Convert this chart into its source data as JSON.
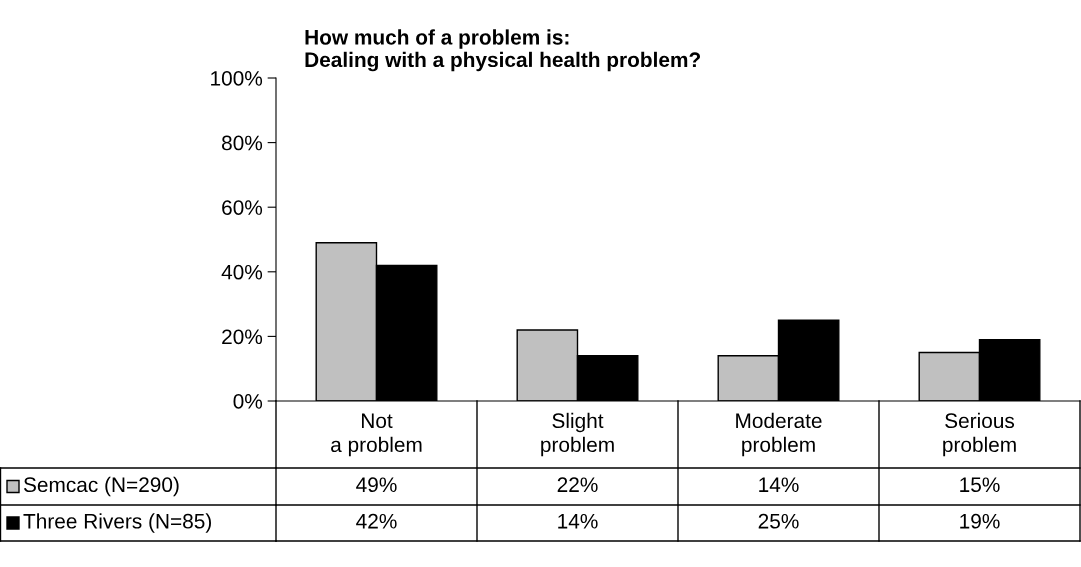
{
  "chart_data": {
    "type": "bar",
    "title": "How much of a problem is:\nDealing with a physical health problem?",
    "categories": [
      "Not\na problem",
      "Slight\nproblem",
      "Moderate\nproblem",
      "Serious\nproblem"
    ],
    "series": [
      {
        "name": "Semcac (N=290)",
        "color": "#c0c0c0",
        "values": [
          49,
          22,
          14,
          15
        ],
        "value_labels": [
          "49%",
          "22%",
          "14%",
          "15%"
        ]
      },
      {
        "name": "Three Rivers (N=85)",
        "color": "#000000",
        "values": [
          42,
          14,
          25,
          19
        ],
        "value_labels": [
          "42%",
          "14%",
          "25%",
          "19%"
        ]
      }
    ],
    "ylim": [
      0,
      100
    ],
    "yticks": [
      {
        "value": 0,
        "label": "0%"
      },
      {
        "value": 20,
        "label": "20%"
      },
      {
        "value": 40,
        "label": "40%"
      },
      {
        "value": 60,
        "label": "60%"
      },
      {
        "value": 80,
        "label": "80%"
      },
      {
        "value": 100,
        "label": "100%"
      }
    ],
    "legend": "bottom left",
    "grid": false
  }
}
